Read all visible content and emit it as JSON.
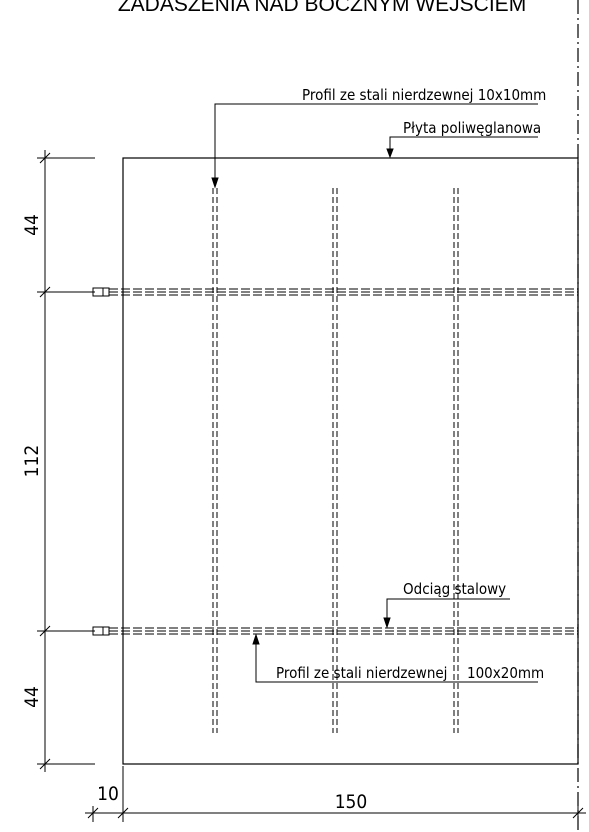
{
  "title": "ZADASZENIA NAD BOCZNYM WEJŚCIEM",
  "annotations": {
    "steel_profile_10x10": "Profil ze stali nierdzewnej 10x10mm",
    "polycarbonate_sheet": "Płyta poliwęglanowa",
    "steel_tie_rod": "Odciąg stalowy",
    "steel_profile_100x20_part1": "Profil ze stali nierdzewnej",
    "steel_profile_100x20_part2": "100x20mm"
  },
  "dimensions": {
    "top_segment": "44",
    "middle_segment": "112",
    "bottom_segment": "44",
    "left_offset": "10",
    "width": "150"
  }
}
